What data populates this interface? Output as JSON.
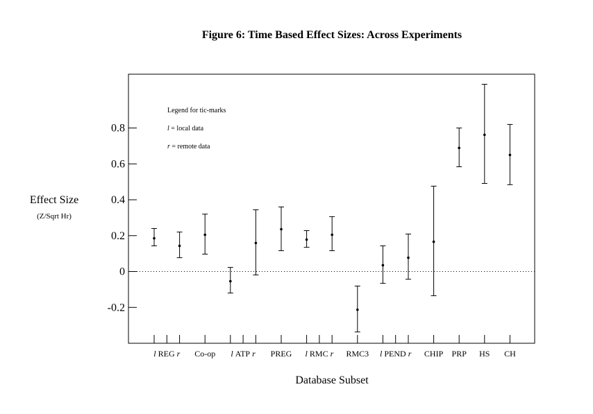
{
  "chart_data": {
    "type": "errorbar",
    "title": "Figure 6:  Time Based Effect Sizes: Across Experiments",
    "xlabel": "Database Subset",
    "ylabel": "Effect Size",
    "ylabel_sub": "(Z/Sqrt Hr)",
    "ylim": [
      -0.4,
      1.1
    ],
    "yticks": [
      -0.2,
      0,
      0.2,
      0.4,
      0.6,
      0.8
    ],
    "ytick_labels": [
      "-0.2",
      "0",
      "0.2",
      "0.4",
      "0.6",
      "0.8"
    ],
    "zero_line": "dotted",
    "legend": {
      "title": "Legend  for tic-marks",
      "entries": [
        {
          "symbol": "l",
          "text": "= local data"
        },
        {
          "symbol": "r",
          "text": "= remote data"
        }
      ],
      "placement": "top-left"
    },
    "groups": [
      {
        "label": "REG",
        "ticks": [
          "l",
          "r"
        ]
      },
      {
        "label": "Co-op",
        "ticks": []
      },
      {
        "label": "ATP",
        "ticks": [
          "l",
          "r"
        ]
      },
      {
        "label": "PREG",
        "ticks": []
      },
      {
        "label": "RMC",
        "ticks": [
          "l",
          "r"
        ]
      },
      {
        "label": "RMC3",
        "ticks": []
      },
      {
        "label": "PEND",
        "ticks": [
          "l",
          "r"
        ]
      },
      {
        "label": "CHIP",
        "ticks": []
      },
      {
        "label": "PRP",
        "ticks": []
      },
      {
        "label": "HS",
        "ticks": []
      },
      {
        "label": "CH",
        "ticks": []
      }
    ],
    "points": [
      {
        "name": "REG l",
        "value": 0.185,
        "upper": 0.24,
        "lower": 0.143
      },
      {
        "name": "REG r",
        "value": 0.143,
        "upper": 0.22,
        "lower": 0.077
      },
      {
        "name": "Co-op",
        "value": 0.205,
        "upper": 0.32,
        "lower": 0.097
      },
      {
        "name": "ATP l",
        "value": -0.054,
        "upper": 0.023,
        "lower": -0.12
      },
      {
        "name": "ATP r",
        "value": 0.159,
        "upper": 0.344,
        "lower": -0.019
      },
      {
        "name": "PREG",
        "value": 0.236,
        "upper": 0.36,
        "lower": 0.116
      },
      {
        "name": "RMC l",
        "value": 0.178,
        "upper": 0.228,
        "lower": 0.135
      },
      {
        "name": "RMC r",
        "value": 0.205,
        "upper": 0.306,
        "lower": 0.116
      },
      {
        "name": "RMC3",
        "value": -0.213,
        "upper": -0.081,
        "lower": -0.337
      },
      {
        "name": "PEND l",
        "value": 0.035,
        "upper": 0.143,
        "lower": -0.066
      },
      {
        "name": "PEND r",
        "value": 0.077,
        "upper": 0.209,
        "lower": -0.043
      },
      {
        "name": "CHIP",
        "value": 0.166,
        "upper": 0.476,
        "lower": -0.135
      },
      {
        "name": "PRP",
        "value": 0.689,
        "upper": 0.8,
        "lower": 0.584
      },
      {
        "name": "HS",
        "value": 0.762,
        "upper": 1.044,
        "lower": 0.491
      },
      {
        "name": "CH",
        "value": 0.65,
        "upper": 0.82,
        "lower": 0.484
      }
    ]
  }
}
